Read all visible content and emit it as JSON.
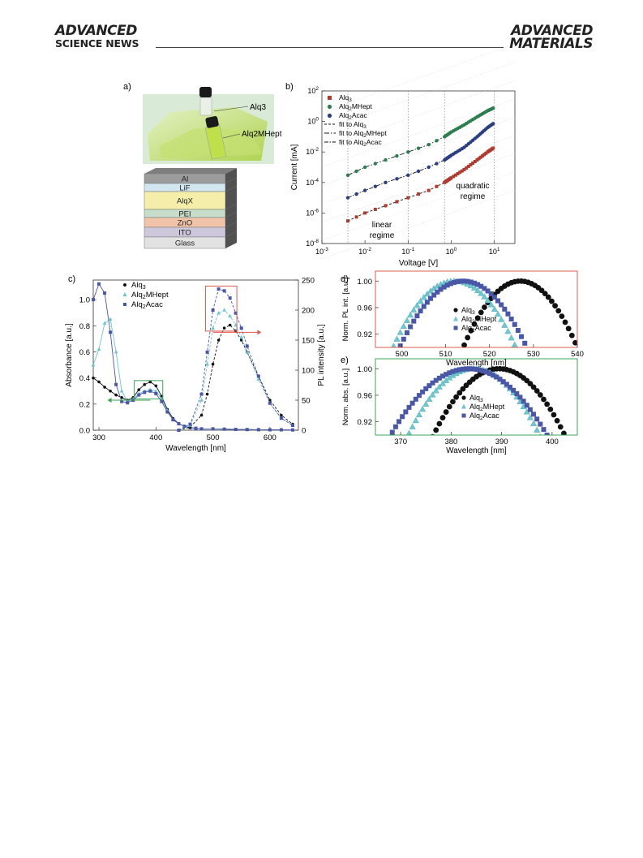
{
  "header": {
    "journal_left_line1": "ADVANCED",
    "journal_left_line2": "SCIENCE NEWS",
    "journal_right_line1": "ADVANCED",
    "journal_right_line2": "MATERIALS"
  },
  "figure": {
    "panel_a": {
      "label": "a)",
      "vial_labels": [
        "Alq3",
        "Alq2MHept"
      ],
      "device_layers": [
        "Al",
        "LiF",
        "AlqX",
        "PEI",
        "ZnO",
        "ITO",
        "Glass"
      ],
      "colors": {
        "Al": "#9c9c9c",
        "LiF": "#d2e6f0",
        "AlqX": "#f4eeaa",
        "PEI": "#c7dcc9",
        "ZnO": "#f1c4aa",
        "ITO": "#cdc7dc",
        "Glass": "#e2e2e2"
      }
    },
    "panel_b": {
      "label": "b)",
      "xlabel": "Voltage [V]",
      "ylabel": "Current [mA]",
      "xticks": [
        "-3",
        "-2",
        "-1",
        "0",
        "1"
      ],
      "yticks": [
        "2",
        "0",
        "-2",
        "-4",
        "-6",
        "-8"
      ],
      "legend": [
        "Alq3",
        "Alq2MHept",
        "Alq2Acac",
        "fit to Alq3",
        "fit to Alq2MHept",
        "fit to Alq2Acac"
      ],
      "annotations": {
        "linear_1": "linear",
        "linear_2": "regime",
        "quadratic_1": "quadratic",
        "quadratic_2": "regime"
      }
    },
    "panel_c": {
      "label": "c)",
      "xlabel": "Wavelength [nm]",
      "ylabel_left": "Absorbance [a.u.]",
      "ylabel_right": "PL intensity [a.u.]",
      "xticks": [
        "300",
        "400",
        "500",
        "600"
      ],
      "yticks_left": [
        "0.0",
        "0.2",
        "0.4",
        "0.6",
        "0.8",
        "1.0"
      ],
      "yticks_right": [
        "0",
        "50",
        "100",
        "150",
        "200",
        "250"
      ],
      "legend": [
        "Alq3",
        "Alq2MHept",
        "Alq2Acac"
      ]
    },
    "panel_d": {
      "label": "d)",
      "xlabel": "Wavelength [nm]",
      "ylabel": "Norm. PL int. [a.u.]",
      "xticks": [
        "500",
        "510",
        "520",
        "530",
        "540"
      ],
      "yticks": [
        "1.00",
        "0.96",
        "0.92"
      ],
      "legend": [
        "Alq3",
        "Alq2MHept",
        "Alq2Acac"
      ]
    },
    "panel_e": {
      "label": "e)",
      "xlabel": "Wavelength [nm]",
      "ylabel": "Norm. abs. [a.u.]",
      "xticks": [
        "370",
        "380",
        "390",
        "400"
      ],
      "yticks": [
        "1.00",
        "0.96",
        "0.92"
      ],
      "legend": [
        "Alq3",
        "Alq2MHept",
        "Alq2Acac"
      ]
    },
    "series_colors": {
      "Alq3": "#111111",
      "Alq2MHept": "#6ec6cf",
      "Alq2Acac": "#4a56a6",
      "Alq3_b": "#b03a2e",
      "Alq2MHept_b": "#2e7d4f",
      "Alq2Acac_b": "#2c3d80"
    }
  },
  "chart_data": [
    {
      "panel": "b",
      "type": "scatter",
      "xlabel": "Voltage [V]",
      "ylabel": "Current [mA]",
      "xscale": "log",
      "yscale": "log",
      "xlim": [
        0.001,
        30
      ],
      "ylim": [
        1e-08,
        100
      ],
      "series": [
        {
          "name": "Alq3",
          "x": [
            0.004,
            0.01,
            0.03,
            0.1,
            0.3,
            0.7,
            1,
            2,
            4,
            7,
            10
          ],
          "y": [
            3e-07,
            1e-06,
            3e-06,
            1e-05,
            3e-05,
            0.0001,
            0.0002,
            0.0007,
            0.003,
            0.01,
            0.02
          ]
        },
        {
          "name": "Alq2MHept",
          "x": [
            0.004,
            0.01,
            0.03,
            0.1,
            0.3,
            0.7,
            1,
            2,
            4,
            7,
            10
          ],
          "y": [
            0.0003,
            0.001,
            0.003,
            0.01,
            0.03,
            0.1,
            0.2,
            0.6,
            2,
            5,
            8
          ]
        },
        {
          "name": "Alq2Acac",
          "x": [
            0.004,
            0.01,
            0.03,
            0.1,
            0.3,
            0.7,
            1,
            2,
            4,
            7,
            10
          ],
          "y": [
            1e-05,
            3e-05,
            0.0001,
            0.0003,
            0.001,
            0.003,
            0.006,
            0.02,
            0.1,
            0.4,
            0.8
          ]
        }
      ],
      "fits": [
        "fit to Alq3",
        "fit to Alq2MHept",
        "fit to Alq2Acac"
      ],
      "annotations": [
        "linear regime",
        "quadratic regime"
      ],
      "legend_position": "top-left",
      "grid": false
    },
    {
      "panel": "c",
      "type": "line",
      "xlabel": "Wavelength [nm]",
      "ylabel": "Absorbance [a.u.]",
      "ylabel_right": "PL intensity [a.u.]",
      "xlim": [
        290,
        650
      ],
      "ylim": [
        0,
        1.15
      ],
      "ylim_right": [
        0,
        250
      ],
      "series": [
        {
          "name": "Alq3",
          "axis": "left",
          "x": [
            290,
            300,
            310,
            320,
            330,
            340,
            350,
            360,
            370,
            380,
            390,
            400,
            410,
            420,
            430,
            440,
            450,
            460,
            470,
            480,
            500,
            520,
            540,
            560,
            580,
            600,
            620,
            640
          ],
          "y": [
            0.4,
            0.37,
            0.33,
            0.3,
            0.27,
            0.25,
            0.23,
            0.25,
            0.31,
            0.35,
            0.37,
            0.34,
            0.26,
            0.16,
            0.09,
            0.05,
            0.03,
            0.02,
            0.015,
            0.01,
            0.01,
            0.008,
            0.006,
            0.005,
            0.004,
            0.003,
            0.003,
            0.002
          ]
        },
        {
          "name": "Alq2MHept",
          "axis": "left",
          "x": [
            290,
            300,
            310,
            320,
            330,
            340,
            350,
            360,
            370,
            380,
            390,
            400,
            410,
            420,
            430,
            440,
            450,
            460,
            470,
            480,
            500,
            520,
            540,
            560,
            580,
            600,
            620,
            640
          ],
          "y": [
            0.5,
            0.62,
            0.82,
            0.85,
            0.6,
            0.3,
            0.22,
            0.24,
            0.28,
            0.3,
            0.31,
            0.3,
            0.24,
            0.15,
            0.08,
            0.05,
            0.03,
            0.02,
            0.015,
            0.01,
            0.01,
            0.008,
            0.006,
            0.005,
            0.004,
            0.003,
            0.003,
            0.002
          ]
        },
        {
          "name": "Alq2Acac",
          "axis": "left",
          "x": [
            290,
            300,
            310,
            320,
            330,
            340,
            350,
            360,
            370,
            380,
            390,
            400,
            410,
            420,
            430,
            440,
            450,
            460,
            470,
            480,
            500,
            520,
            540,
            560,
            580,
            600,
            620,
            640
          ],
          "y": [
            1.0,
            1.12,
            1.05,
            0.75,
            0.35,
            0.22,
            0.21,
            0.23,
            0.27,
            0.29,
            0.3,
            0.28,
            0.22,
            0.14,
            0.08,
            0.05,
            0.03,
            0.02,
            0.015,
            0.01,
            0.01,
            0.008,
            0.006,
            0.005,
            0.004,
            0.003,
            0.003,
            0.002
          ]
        },
        {
          "name": "Alq3 (PL)",
          "axis": "right",
          "x": [
            440,
            460,
            480,
            490,
            500,
            510,
            520,
            530,
            540,
            550,
            560,
            580,
            600,
            620,
            640
          ],
          "y": [
            0,
            5,
            25,
            60,
            110,
            150,
            170,
            175,
            165,
            150,
            130,
            90,
            50,
            25,
            10
          ]
        },
        {
          "name": "Alq2MHept (PL)",
          "axis": "right",
          "x": [
            440,
            460,
            480,
            490,
            500,
            510,
            520,
            530,
            540,
            550,
            560,
            580,
            600,
            620,
            640
          ],
          "y": [
            0,
            8,
            50,
            110,
            170,
            195,
            200,
            190,
            175,
            155,
            130,
            85,
            45,
            20,
            8
          ]
        },
        {
          "name": "Alq2Acac (PL)",
          "axis": "right",
          "x": [
            440,
            460,
            480,
            490,
            500,
            510,
            520,
            530,
            540,
            550,
            560,
            580,
            600,
            620,
            640
          ],
          "y": [
            0,
            10,
            60,
            130,
            200,
            235,
            232,
            220,
            195,
            170,
            140,
            90,
            45,
            20,
            8
          ]
        }
      ],
      "legend_position": "top-center",
      "grid": false
    },
    {
      "panel": "d",
      "type": "scatter",
      "xlabel": "Wavelength [nm]",
      "ylabel": "Norm. PL int. [a.u.]",
      "xlim": [
        494,
        540
      ],
      "ylim": [
        0.9,
        1.015
      ],
      "series": [
        {
          "name": "Alq3",
          "peak": 527,
          "width": 26
        },
        {
          "name": "Alq2MHept",
          "peak": 512,
          "width": 28
        },
        {
          "name": "Alq2Acac",
          "peak": 514,
          "width": 29
        }
      ],
      "legend_position": "center"
    },
    {
      "panel": "e",
      "type": "scatter",
      "xlabel": "Wavelength [nm]",
      "ylabel": "Norm. abs. [a.u.]",
      "xlim": [
        365,
        405
      ],
      "ylim": [
        0.9,
        1.015
      ],
      "series": [
        {
          "name": "Alq3",
          "peak": 389.5,
          "width": 26
        },
        {
          "name": "Alq2MHept",
          "peak": 384.5,
          "width": 26
        },
        {
          "name": "Alq2Acac",
          "peak": 383.5,
          "width": 31
        }
      ],
      "legend_position": "center-right"
    }
  ]
}
